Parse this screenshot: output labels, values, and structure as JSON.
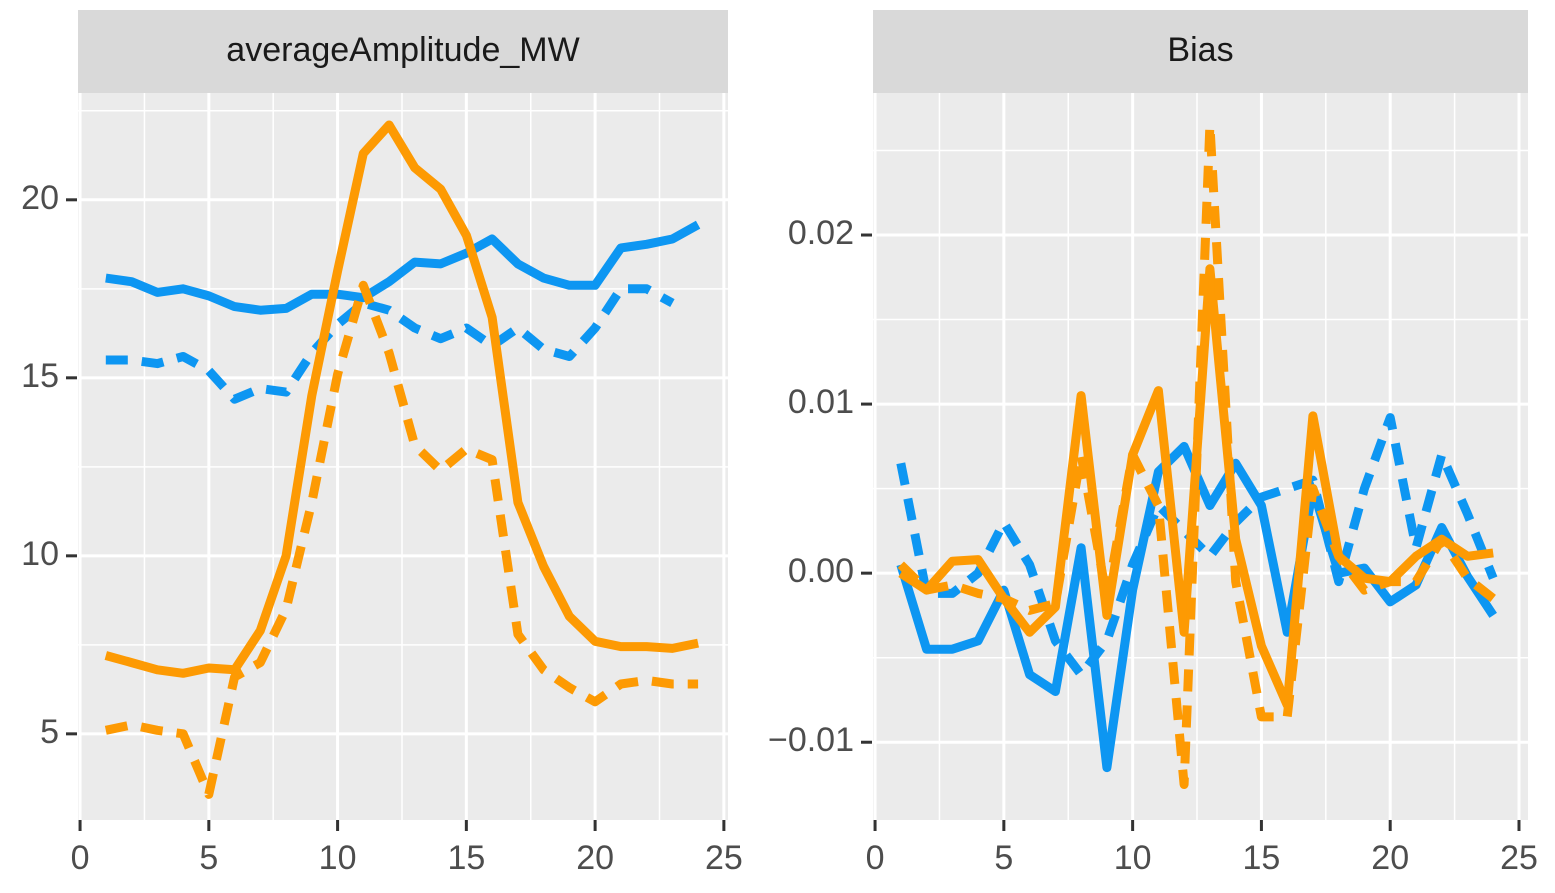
{
  "chart_data": [
    {
      "type": "line",
      "title": "averageAmplitude_MW",
      "x": [
        1,
        2,
        3,
        4,
        5,
        6,
        7,
        8,
        9,
        10,
        11,
        12,
        13,
        14,
        15,
        16,
        17,
        18,
        19,
        20,
        21,
        22,
        23,
        24
      ],
      "series": [
        {
          "color": "#0d96f2",
          "dashed": false,
          "values": [
            17.8,
            17.7,
            17.4,
            17.5,
            17.3,
            17.0,
            16.9,
            16.95,
            17.35,
            17.35,
            17.25,
            17.7,
            18.25,
            18.2,
            18.5,
            18.9,
            18.2,
            17.8,
            17.6,
            17.6,
            18.65,
            18.75,
            18.9,
            19.3
          ]
        },
        {
          "color": "#0d96f2",
          "dashed": true,
          "values": [
            15.5,
            15.5,
            15.4,
            15.6,
            15.2,
            14.4,
            14.7,
            14.6,
            15.7,
            16.5,
            17.1,
            16.9,
            16.4,
            16.1,
            16.4,
            15.9,
            16.4,
            15.8,
            15.6,
            16.4,
            17.5,
            17.5,
            17.1,
            null
          ]
        },
        {
          "color": "#fd9a03",
          "dashed": false,
          "values": [
            7.2,
            7.0,
            6.8,
            6.7,
            6.85,
            6.8,
            7.9,
            10.0,
            14.5,
            18.0,
            21.3,
            22.1,
            20.9,
            20.3,
            19.0,
            16.7,
            11.5,
            9.7,
            8.3,
            7.6,
            7.45,
            7.45,
            7.4,
            7.55
          ]
        },
        {
          "color": "#fd9a03",
          "dashed": true,
          "values": [
            5.1,
            5.25,
            5.1,
            5.0,
            3.3,
            6.6,
            7.0,
            8.5,
            11.5,
            15.1,
            17.6,
            15.7,
            13.1,
            12.4,
            13.0,
            12.7,
            7.8,
            6.8,
            6.3,
            5.9,
            6.4,
            6.5,
            6.4,
            6.4
          ]
        }
      ],
      "xlim": [
        -0.08,
        25.16
      ],
      "xticks": [
        0,
        5,
        10,
        15,
        20,
        25
      ],
      "xminorticks": [
        2.5,
        7.5,
        12.5,
        17.5,
        22.5
      ],
      "ylim": [
        2.58,
        23.0
      ],
      "yticks": [
        5,
        10,
        15,
        20
      ],
      "yminorticks": [
        7.5,
        12.5,
        17.5,
        22.5
      ],
      "grid": true
    },
    {
      "type": "line",
      "title": "Bias",
      "x": [
        1,
        2,
        3,
        4,
        5,
        6,
        7,
        8,
        9,
        10,
        11,
        12,
        13,
        14,
        15,
        16,
        17,
        18,
        19,
        20,
        21,
        22,
        23,
        24
      ],
      "series": [
        {
          "color": "#0d96f2",
          "dashed": false,
          "values": [
            0.0005,
            -0.0045,
            -0.0045,
            -0.004,
            -0.001,
            -0.006,
            -0.007,
            0.0015,
            -0.0115,
            -0.001,
            0.006,
            0.0075,
            0.004,
            0.0065,
            0.004,
            -0.0035,
            0.005,
            0,
            0.0003,
            -0.0017,
            -0.0007,
            0.0027,
            -0.0002,
            -0.0025
          ]
        },
        {
          "color": "#0d96f2",
          "dashed": true,
          "values": [
            0.0065,
            -0.0012,
            -0.0012,
            0.0,
            0.003,
            0.0005,
            -0.004,
            -0.006,
            -0.004,
            0.0005,
            0.004,
            0.0025,
            0.001,
            0.003,
            0.0045,
            0.005,
            0.0055,
            -0.0005,
            0.005,
            0.0092,
            0.0015,
            0.007,
            0.0035,
            -0.0003
          ]
        },
        {
          "color": "#fd9a03",
          "dashed": false,
          "values": [
            0,
            -0.001,
            0.0007,
            0.0008,
            -0.0015,
            -0.0035,
            -0.002,
            0.0105,
            -0.0025,
            0.007,
            0.0108,
            -0.0035,
            0.018,
            0.002,
            -0.0043,
            -0.0078,
            0.0093,
            0.001,
            -0.0003,
            -0.0005,
            0.001,
            0.002,
            0.001,
            0.0012
          ]
        },
        {
          "color": "#fd9a03",
          "dashed": true,
          "values": [
            0.0005,
            -0.001,
            -0.0007,
            -0.0012,
            -0.0015,
            -0.0022,
            -0.0018,
            0.007,
            -0.0015,
            0.007,
            0.004,
            -0.0125,
            0.0265,
            -0.0005,
            -0.0085,
            -0.0085,
            0.005,
            0.001,
            -0.001,
            -0.0005,
            -0.0005,
            0.002,
            -0.0003,
            -0.0015
          ]
        }
      ],
      "xlim": [
        -0.08,
        25.35
      ],
      "xticks": [
        0,
        5,
        10,
        15,
        20,
        25
      ],
      "xminorticks": [
        2.5,
        7.5,
        12.5,
        17.5,
        22.5
      ],
      "ylim": [
        -0.0146,
        0.0284
      ],
      "yticks": [
        {
          "value": -0.01,
          "label": "−0.01"
        },
        {
          "value": 0,
          "label": "0.00"
        },
        0.01,
        0.02
      ],
      "yminorticks": [
        -0.005,
        0.005,
        0.015,
        0.025
      ],
      "grid": true
    }
  ]
}
